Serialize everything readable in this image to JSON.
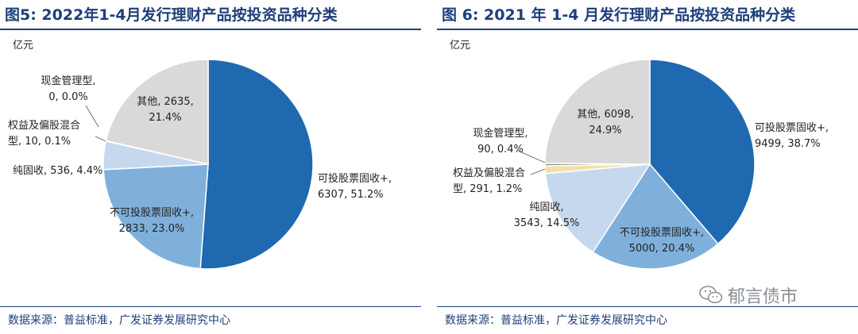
{
  "chart_data": [
    {
      "type": "pie",
      "title": "图5:  2022年1-4月发行理财产品按投资品种分类",
      "unit": "亿元",
      "source": "数据来源：普益标准，广发证券发展研究中心",
      "slices": [
        {
          "name": "可投股票固收+",
          "value": 6307,
          "pct": "51.2%",
          "color": "#1f69b0"
        },
        {
          "name": "不可投股票固收+",
          "value": 2833,
          "pct": "23.0%",
          "color": "#7fb0dc"
        },
        {
          "name": "纯固收",
          "value": 536,
          "pct": "4.4%",
          "color": "#c5d8ee"
        },
        {
          "name": "权益及偏股混合型",
          "value": 10,
          "pct": "0.1%",
          "color": "#f3e0a8"
        },
        {
          "name": "现金管理型",
          "value": 0,
          "pct": "0.0%",
          "color": "#8c8c8c"
        },
        {
          "name": "其他",
          "value": 2635,
          "pct": "21.4%",
          "color": "#d9d9d9"
        }
      ],
      "labels": [
        {
          "lines": [
            "可投股票固收+,",
            "6307, 51.2%"
          ]
        },
        {
          "lines": [
            "不可投股票固收+,",
            "2833, 23.0%"
          ]
        },
        {
          "lines": [
            "纯固收, 536, 4.4%"
          ]
        },
        {
          "lines": [
            "权益及偏股混合",
            "型, 10, 0.1%"
          ]
        },
        {
          "lines": [
            "现金管理型,",
            "0, 0.0%"
          ]
        },
        {
          "lines": [
            "其他, 2635,",
            "21.4%"
          ]
        }
      ]
    },
    {
      "type": "pie",
      "title": "图 6:  2021 年 1-4 月发行理财产品按投资品种分类",
      "unit": "亿元",
      "source": "数据来源：普益标准，广发证券发展研究中心",
      "slices": [
        {
          "name": "可投股票固收+",
          "value": 9499,
          "pct": "38.7%",
          "color": "#1f69b0"
        },
        {
          "name": "不可投股票固收+",
          "value": 5000,
          "pct": "20.4%",
          "color": "#7fb0dc"
        },
        {
          "name": "纯固收",
          "value": 3543,
          "pct": "14.5%",
          "color": "#c5d8ee"
        },
        {
          "name": "权益及偏股混合型",
          "value": 291,
          "pct": "1.2%",
          "color": "#f3e0a8"
        },
        {
          "name": "现金管理型",
          "value": 90,
          "pct": "0.4%",
          "color": "#8c8c8c"
        },
        {
          "name": "其他",
          "value": 6098,
          "pct": "24.9%",
          "color": "#d9d9d9"
        }
      ],
      "labels": [
        {
          "lines": [
            "可投股票固收+,",
            "9499, 38.7%"
          ]
        },
        {
          "lines": [
            "不可投股票固收+,",
            "5000, 20.4%"
          ]
        },
        {
          "lines": [
            "纯固收,",
            "3543, 14.5%"
          ]
        },
        {
          "lines": [
            "权益及偏股混合",
            "型, 291, 1.2%"
          ]
        },
        {
          "lines": [
            "现金管理型,",
            "90, 0.4%"
          ]
        },
        {
          "lines": [
            "其他, 6098,",
            "24.9%"
          ]
        }
      ]
    }
  ],
  "watermark": {
    "text": "郁言债市",
    "icon": "wechat-icon"
  }
}
